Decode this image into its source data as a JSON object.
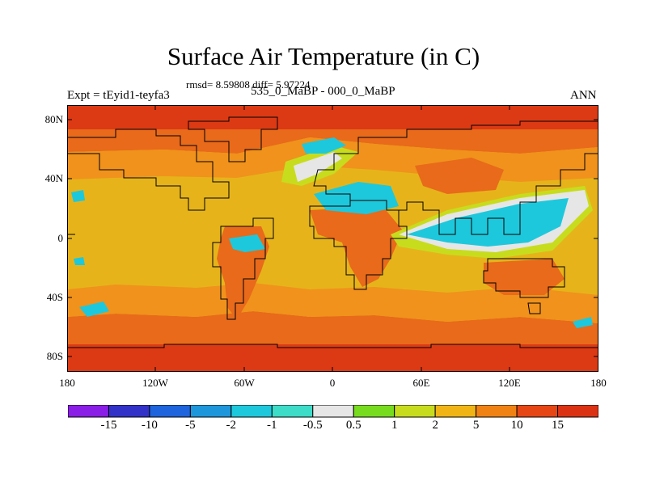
{
  "title": "Surface Air Temperature (in C)",
  "stats_text": "rmsd= 8.59808 diff= 5.97224",
  "left_label": "Expt = tEyid1-teyfa3",
  "center_label": "535_0_MaBP - 000_0_MaBP",
  "right_label": "ANN",
  "lat_labels": [
    "80N",
    "40N",
    "0",
    "40S",
    "80S"
  ],
  "lon_labels": [
    "180",
    "120W",
    "60W",
    "0",
    "60E",
    "120E",
    "180"
  ],
  "colorbar": {
    "labels": [
      "-15",
      "-10",
      "-5",
      "-2",
      "-1",
      "-0.5",
      "0.5",
      "1",
      "2",
      "5",
      "10",
      "15"
    ],
    "colors": [
      "#8a1ee6",
      "#3232c8",
      "#1e64dc",
      "#1e96dc",
      "#1ec8dc",
      "#3cdcc8",
      "#e6e6e6",
      "#78dc1e",
      "#c8dc1e",
      "#f0b414",
      "#f08214",
      "#e64614",
      "#dc3214"
    ]
  },
  "palette": {
    "hot": "#dc3a14",
    "warm": "#e86a1a",
    "mid": "#f0921c",
    "mild": "#e6b41a",
    "yellowgreen": "#c8dc1e",
    "green": "#78dc1e",
    "neutral": "#e6e6e6",
    "teal": "#3cdcc8",
    "cyan": "#1ec8dc",
    "blue": "#1e96dc"
  }
}
